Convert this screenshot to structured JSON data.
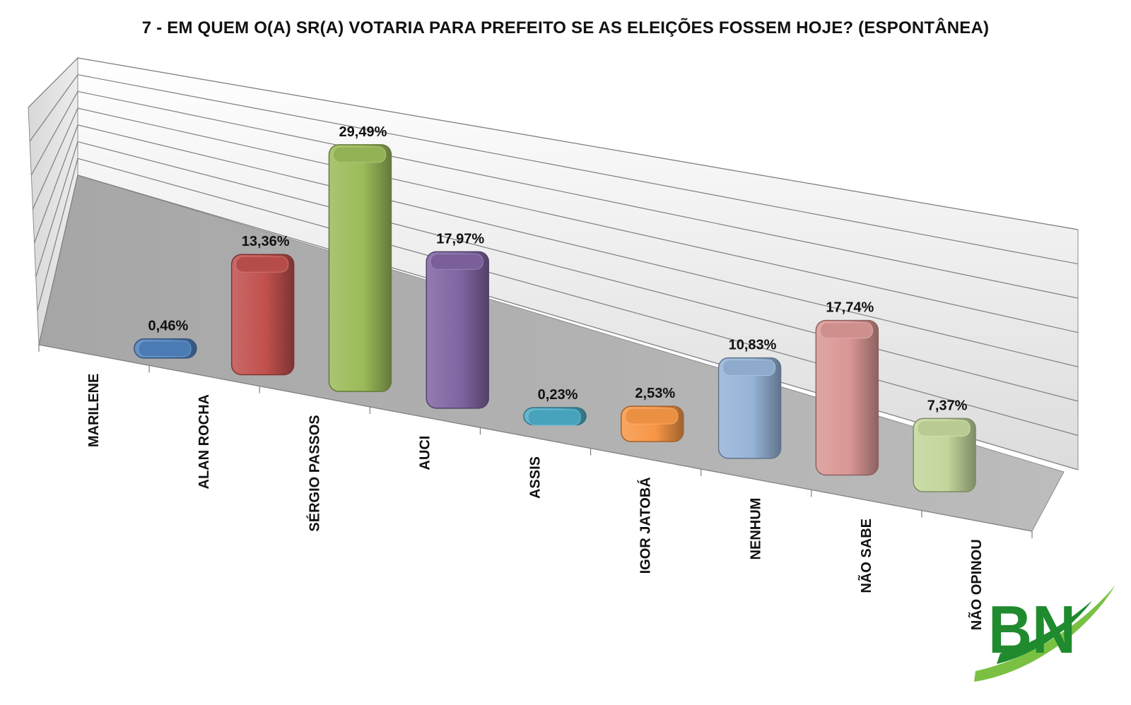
{
  "chart_data": {
    "type": "bar",
    "title": "7 - EM QUEM O(A) SR(A) VOTARIA PARA PREFEITO SE AS ELEIÇÕES FOSSEM HOJE? (ESPONTÂNEA)",
    "categories": [
      "MARILENE",
      "ALAN ROCHA",
      "SÉRGIO PASSOS",
      "AUCI",
      "ASSIS",
      "IGOR JATOBÁ",
      "NENHUM",
      "NÃO SABE",
      "NÃO OPINOU"
    ],
    "values": [
      0.46,
      13.36,
      29.49,
      17.97,
      0.23,
      2.53,
      10.83,
      17.74,
      7.37
    ],
    "value_labels": [
      "0,46%",
      "13,36%",
      "29,49%",
      "17,97%",
      "0,23%",
      "2,53%",
      "10,83%",
      "17,74%",
      "7,37%"
    ],
    "colors": [
      "#4f81bd",
      "#c0504d",
      "#9bbb59",
      "#8064a2",
      "#4bacc6",
      "#f79646",
      "#95b3d7",
      "#d99694",
      "#c3d69b"
    ],
    "ylim": [
      0,
      35
    ],
    "grid": true,
    "legend": "none",
    "xlabel": "",
    "ylabel": ""
  },
  "logo": {
    "text": "BN",
    "color": "#1f8a2e",
    "accent": "#7ac143"
  }
}
